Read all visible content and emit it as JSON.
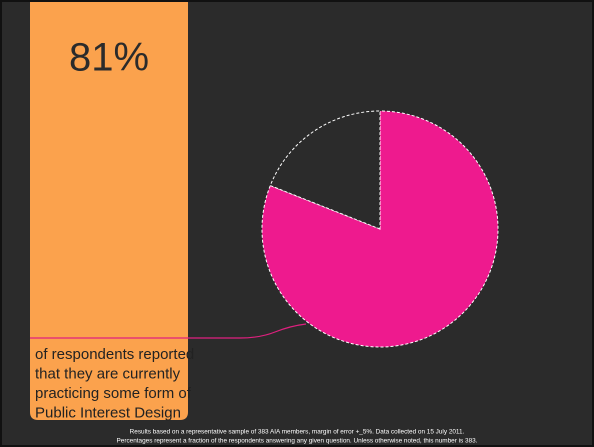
{
  "chart_data": {
    "type": "pie",
    "values": [
      81,
      19
    ],
    "value_labels": [
      "81%",
      null
    ],
    "colors": [
      "#ee1a8e",
      "#2b2b2b"
    ],
    "description": [
      "of respondents reported",
      "that they are currently",
      "practicing some form of",
      "Public Interest Design"
    ],
    "notes": [
      "Results based on a representative sample of 383 AIA members, margin of error +_5%. Data collected on 15 July 2011.",
      "Percentages represent a fraction of the respondents answering any given question. Unless otherwise noted, this number is 383."
    ]
  }
}
